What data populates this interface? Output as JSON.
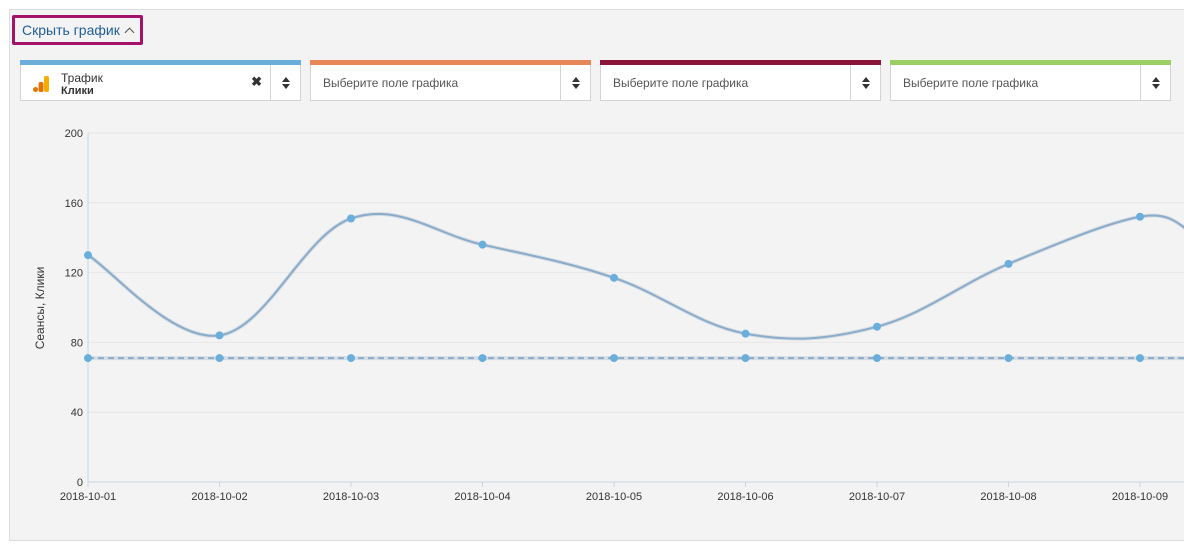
{
  "toggle": {
    "label": "Скрыть график"
  },
  "selectors": [
    {
      "color": "#6aaedc",
      "title": "Трафик",
      "subtitle": "Клики",
      "placeholder": ""
    },
    {
      "color": "#e8885a",
      "title": "",
      "subtitle": "",
      "placeholder": "Выберите поле графика"
    },
    {
      "color": "#8a1538",
      "title": "",
      "subtitle": "",
      "placeholder": "Выберите поле графика"
    },
    {
      "color": "#9ccf63",
      "title": "",
      "subtitle": "",
      "placeholder": "Выберите поле графика"
    }
  ],
  "icons": {
    "selector_source": "google-analytics-icon",
    "clear": "close-icon",
    "sort": "sort-updown-icon",
    "toggle": "chevron-up-icon"
  },
  "chart_data": {
    "type": "line",
    "categories": [
      "2018-10-01",
      "2018-10-02",
      "2018-10-03",
      "2018-10-04",
      "2018-10-05",
      "2018-10-06",
      "2018-10-07",
      "2018-10-08",
      "2018-10-09"
    ],
    "series": [
      {
        "values": [
          130,
          84,
          151,
          136,
          117,
          85,
          89,
          125,
          152
        ],
        "style": "solid",
        "color": "#8aabc9"
      },
      {
        "values": [
          71,
          71,
          71,
          71,
          71,
          71,
          71,
          71,
          71
        ],
        "style": "dashed",
        "color": "#8aabc9"
      }
    ],
    "point_color": "#6aaedc",
    "ylabel": "Сеансы, Клики",
    "yticks": [
      0,
      40,
      80,
      120,
      160,
      200
    ],
    "ylim": [
      0,
      200
    ],
    "grid": true
  }
}
